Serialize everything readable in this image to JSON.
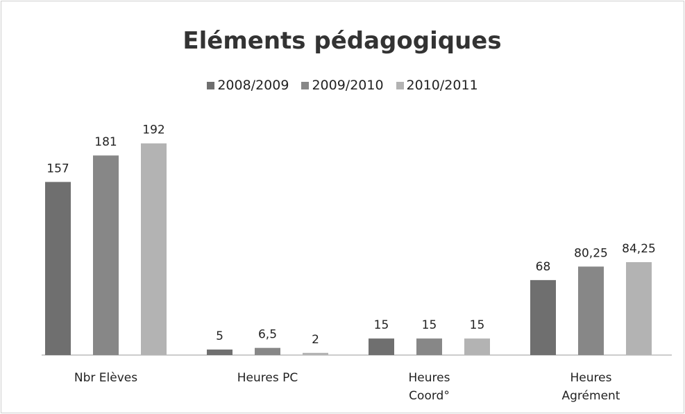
{
  "chart_data": {
    "type": "bar",
    "title": "Eléments pédagogiques",
    "categories": [
      "Nbr Elèves",
      "Heures PC",
      "Heures Coord°",
      "Heures Agrément"
    ],
    "series": [
      {
        "name": "2008/2009",
        "color": "#6f6f6f",
        "values": [
          157,
          5,
          15,
          68
        ],
        "value_labels": [
          "157",
          "5",
          "15",
          "68"
        ]
      },
      {
        "name": "2009/2010",
        "color": "#878787",
        "values": [
          181,
          6.5,
          15,
          80.25
        ],
        "value_labels": [
          "181",
          "6,5",
          "15",
          "80,25"
        ]
      },
      {
        "name": "2010/2011",
        "color": "#b3b3b3",
        "values": [
          192,
          2,
          15,
          84.25
        ],
        "value_labels": [
          "192",
          "2",
          "15",
          "84,25"
        ]
      }
    ],
    "ylim": [
      0,
      200
    ],
    "grid": false,
    "legend": "top"
  }
}
